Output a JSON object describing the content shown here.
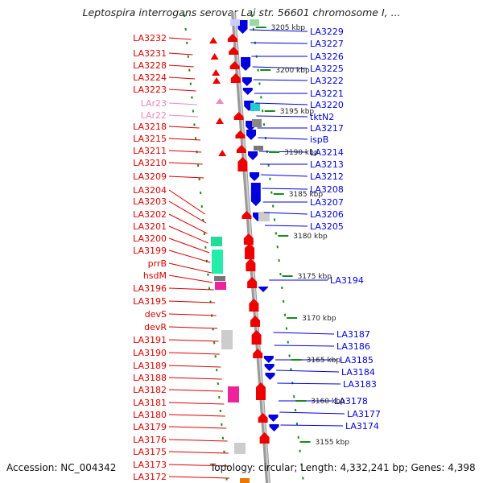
{
  "title": "Leptospira interrogans serovar Lai str. 56601 chromosome I, ...",
  "footer": {
    "accession": "Accession: NC_004342",
    "topology": "Topology: circular; Length: 4,332,241 bp; Genes: 4,398"
  },
  "colors": {
    "forward_gene": "#ee0000",
    "reverse_gene": "#0000dd",
    "trna_label": "#ee88bb",
    "tick_green": "#1a8a1a",
    "backbone": "#9a9a9a"
  },
  "kbp_ticks": [
    "3205 kbp",
    "3200 kbp",
    "3195 kbp",
    "3190 kbp",
    "3185 kbp",
    "3180 kbp",
    "3175 kbp",
    "3170 kbp",
    "3165 kbp",
    "3160 kbp",
    "3155 kbp"
  ],
  "left_labels": [
    {
      "text": "LA3232",
      "type": "gene"
    },
    {
      "text": "LA3231",
      "type": "gene"
    },
    {
      "text": "LA3228",
      "type": "gene"
    },
    {
      "text": "LA3224",
      "type": "gene"
    },
    {
      "text": "LA3223",
      "type": "gene"
    },
    {
      "text": "LAr23",
      "type": "trna"
    },
    {
      "text": "LAr22",
      "type": "trna"
    },
    {
      "text": "LA3218",
      "type": "gene"
    },
    {
      "text": "LA3215",
      "type": "gene"
    },
    {
      "text": "LA3211",
      "type": "gene"
    },
    {
      "text": "LA3210",
      "type": "gene"
    },
    {
      "text": "LA3209",
      "type": "gene"
    },
    {
      "text": "LA3204",
      "type": "gene"
    },
    {
      "text": "LA3203",
      "type": "gene"
    },
    {
      "text": "LA3202",
      "type": "gene"
    },
    {
      "text": "LA3201",
      "type": "gene"
    },
    {
      "text": "LA3200",
      "type": "gene"
    },
    {
      "text": "LA3199",
      "type": "gene"
    },
    {
      "text": "prrB",
      "type": "gene"
    },
    {
      "text": "hsdM",
      "type": "gene"
    },
    {
      "text": "LA3196",
      "type": "gene"
    },
    {
      "text": "LA3195",
      "type": "gene"
    },
    {
      "text": "devS",
      "type": "gene"
    },
    {
      "text": "devR",
      "type": "gene"
    },
    {
      "text": "LA3191",
      "type": "gene"
    },
    {
      "text": "LA3190",
      "type": "gene"
    },
    {
      "text": "LA3189",
      "type": "gene"
    },
    {
      "text": "LA3188",
      "type": "gene"
    },
    {
      "text": "LA3182",
      "type": "gene"
    },
    {
      "text": "LA3181",
      "type": "gene"
    },
    {
      "text": "LA3180",
      "type": "gene"
    },
    {
      "text": "LA3179",
      "type": "gene"
    },
    {
      "text": "LA3176",
      "type": "gene"
    },
    {
      "text": "LA3175",
      "type": "gene"
    },
    {
      "text": "LA3173",
      "type": "gene"
    },
    {
      "text": "LA3172",
      "type": "gene"
    }
  ],
  "right_labels": [
    "LA3229",
    "LA3227",
    "LA3226",
    "LA3225",
    "LA3222",
    "LA3221",
    "LA3220",
    "tktN2",
    "LA3217",
    "ispB",
    "LA3214",
    "LA3213",
    "LA3212",
    "LA3208",
    "LA3207",
    "LA3206",
    "LA3205",
    "LA3194",
    "LA3187",
    "LA3186",
    "LA3185",
    "LA3184",
    "LA3183",
    "LA3178",
    "LA3177",
    "LA3174"
  ]
}
